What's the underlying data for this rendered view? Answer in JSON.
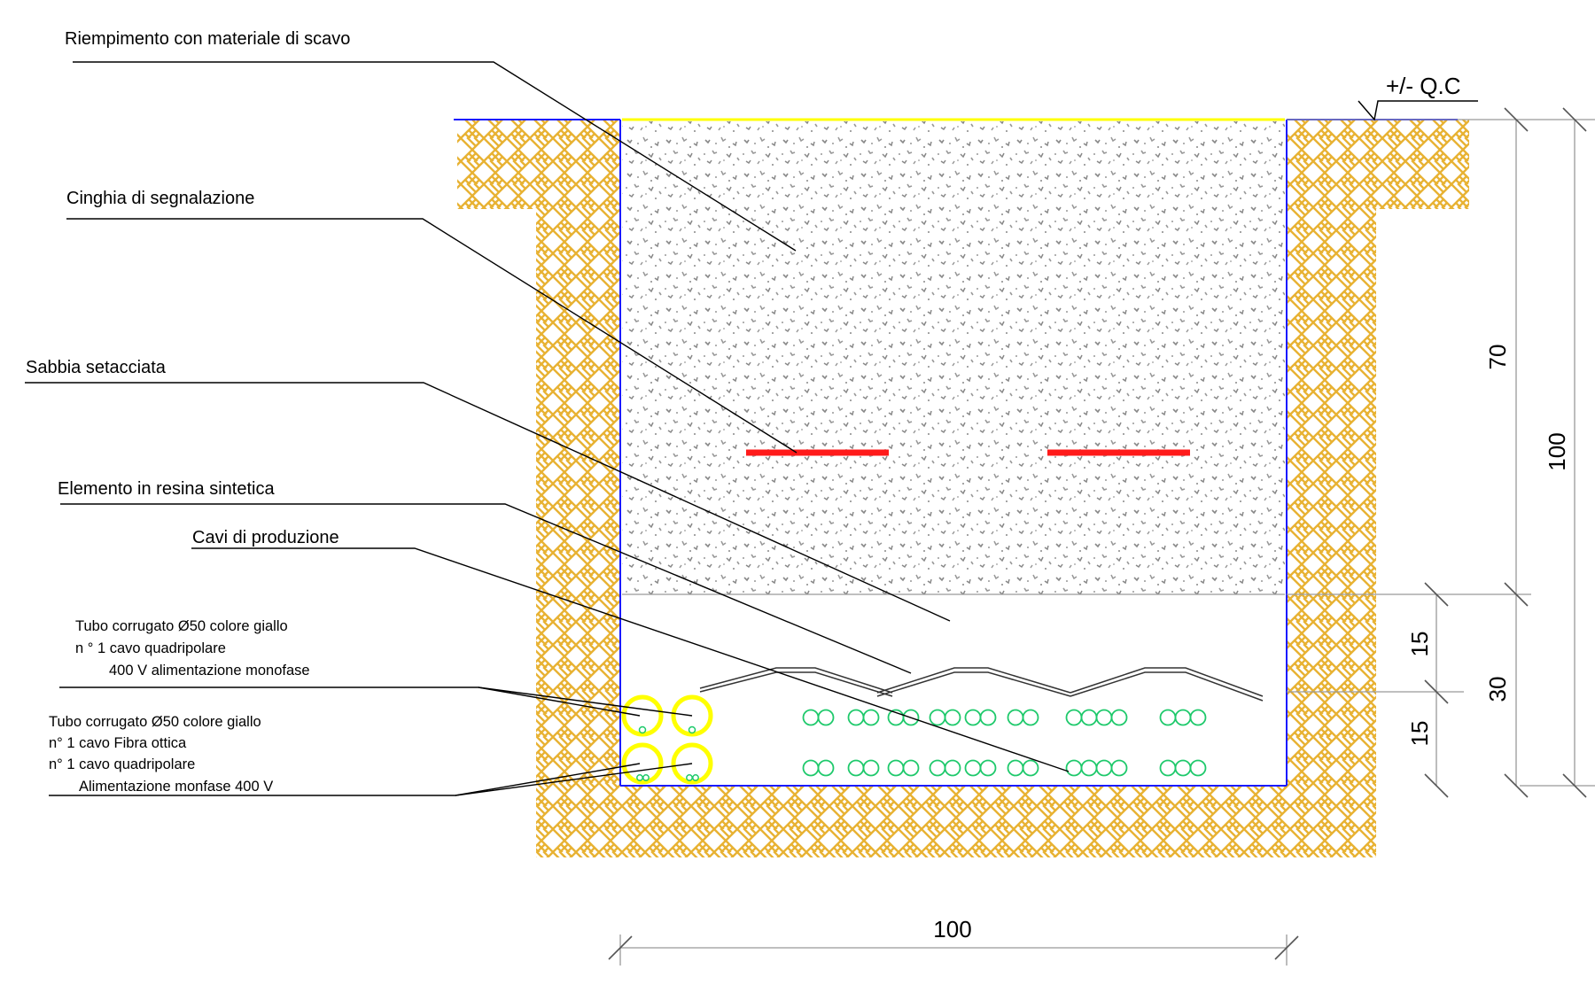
{
  "labels": {
    "riempimento": "Riempimento con materiale di scavo",
    "cinghia": "Cinghia di segnalazione",
    "sabbia": "Sabbia setacciata",
    "resina": "Elemento in resina sintetica",
    "cavi": "Cavi di produzione",
    "tubo1": [
      "Tubo corrugato Ø50 colore giallo",
      "n ° 1 cavo quadripolare",
      "400 V alimentazione monofase"
    ],
    "tubo2": [
      "Tubo corrugato Ø50 colore giallo",
      "n° 1 cavo Fibra ottica",
      "n° 1 cavo quadripolare",
      "Alimentazione monfase 400 V"
    ]
  },
  "dimensions": {
    "qc": "+/- Q.C",
    "d70": "70",
    "d100_vertical": "100",
    "d15_top": "15",
    "d15_bottom": "15",
    "d30": "30",
    "d100_horizontal": "100"
  },
  "colors": {
    "soil_hatch": "#e8b233",
    "trench_outline": "#1a1aff",
    "ground_line": "#ffff00",
    "warning_tape": "#ff1a1a",
    "conduit": "#ffff00",
    "production_cables": "#1ec96b",
    "fill_speckle": "#888888"
  }
}
